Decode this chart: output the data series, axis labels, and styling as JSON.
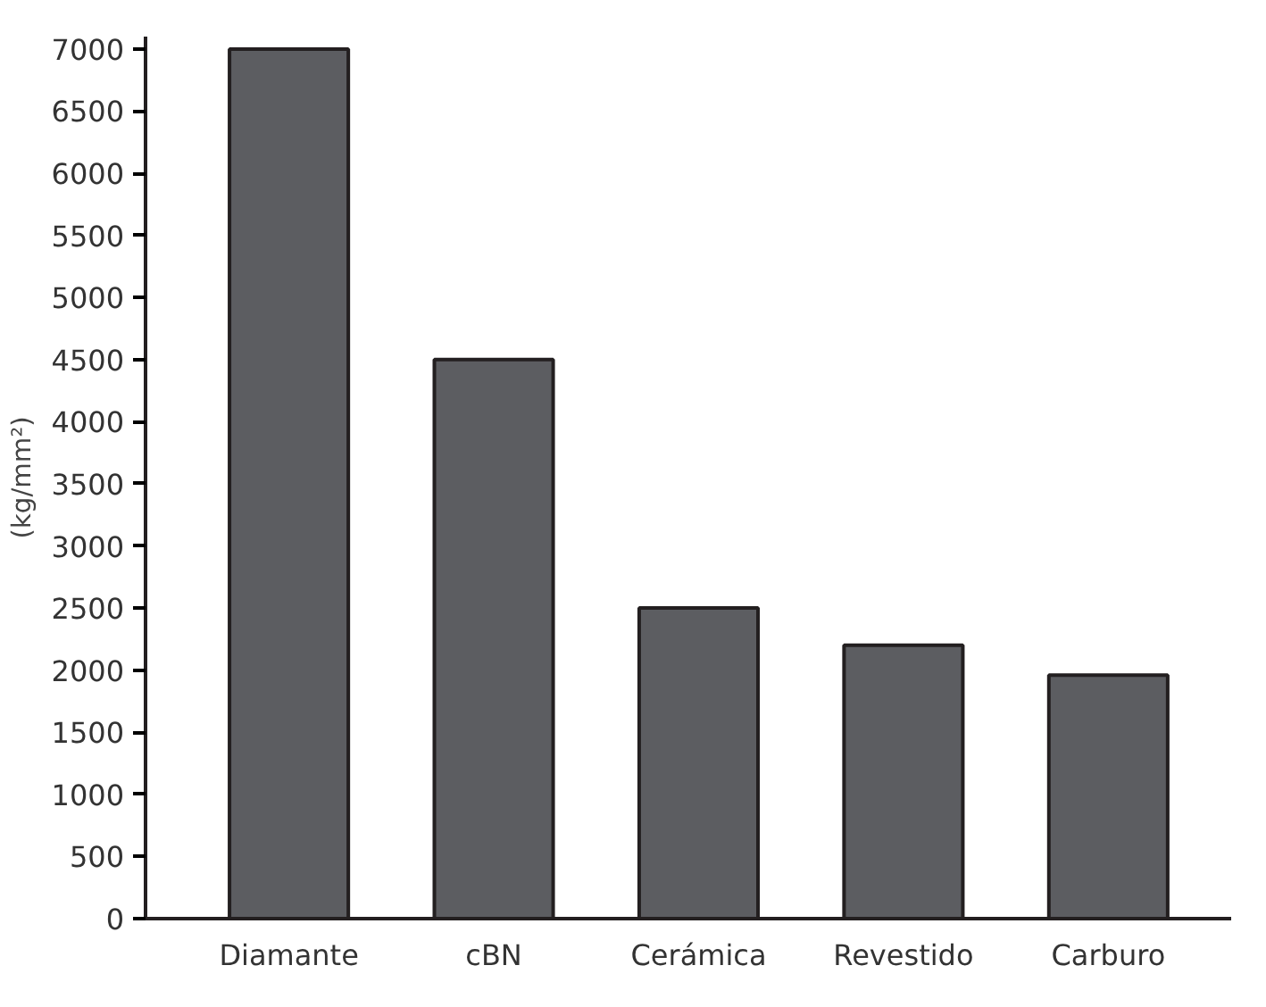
{
  "chart_data": {
    "type": "bar",
    "ylabel": "(kg/mm²)",
    "categories": [
      "Diamante",
      "cBN",
      "Cerámica",
      "Revestido",
      "Carburo"
    ],
    "values": [
      7000,
      4500,
      2500,
      2200,
      1960
    ],
    "color": "#5c5d61",
    "ylim": [
      0,
      7100
    ],
    "yticks": [
      0,
      500,
      1000,
      1500,
      2000,
      2500,
      3000,
      3500,
      4000,
      4500,
      5000,
      5500,
      6000,
      6500,
      7000
    ],
    "grid": false
  }
}
